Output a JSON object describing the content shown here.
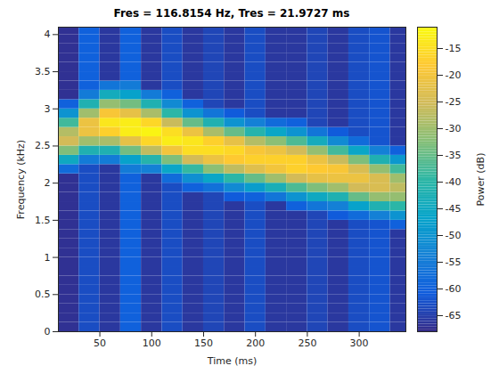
{
  "chart_data": {
    "type": "heatmap",
    "title": "Fres = 116.8154 Hz, Tres = 21.9727 ms",
    "x_label": "Time (ms)",
    "y_label": "Frequency (kHz)",
    "x": [
      20,
      40,
      60,
      80,
      100,
      120,
      140,
      160,
      180,
      200,
      220,
      240,
      260,
      280,
      300,
      320,
      340
    ],
    "y": [
      0.0625,
      0.1875,
      0.3125,
      0.4375,
      0.5625,
      0.6875,
      0.8125,
      0.9375,
      1.0625,
      1.1875,
      1.3125,
      1.4375,
      1.5625,
      1.6875,
      1.8125,
      1.9375,
      2.0625,
      2.1875,
      2.3125,
      2.4375,
      2.5625,
      2.6875,
      2.8125,
      2.9375,
      3.0625,
      3.1875,
      3.3125,
      3.4375,
      3.5625,
      3.6875,
      3.8125,
      3.9375,
      4.0625
    ],
    "values": [
      [
        -67,
        -67,
        -67,
        -67,
        -67,
        -67,
        -67,
        -67,
        -67,
        -67,
        -67,
        -67,
        -67,
        -67,
        -67,
        -67,
        -67,
        -58,
        -45,
        -33,
        -25,
        -28,
        -38,
        -50,
        -60,
        -67,
        -67,
        -67,
        -67,
        -67,
        -67,
        -67,
        -67
      ],
      [
        -63,
        -63,
        -63,
        -63,
        -63,
        -63,
        -63,
        -63,
        -63,
        -63,
        -63,
        -63,
        -63,
        -63,
        -63,
        -63,
        -63,
        -63,
        -55,
        -42,
        -30,
        -21,
        -21,
        -30,
        -42,
        -55,
        -60,
        -60,
        -60,
        -60,
        -60,
        -60,
        -60
      ],
      [
        -66,
        -66,
        -66,
        -66,
        -66,
        -66,
        -66,
        -66,
        -66,
        -66,
        -66,
        -66,
        -66,
        -66,
        -66,
        -66,
        -66,
        -66,
        -55,
        -42,
        -29,
        -17,
        -14,
        -19,
        -31,
        -44,
        -56,
        -66,
        -66,
        -66,
        -66,
        -66,
        -66
      ],
      [
        -60,
        -60,
        -60,
        -60,
        -60,
        -60,
        -60,
        -60,
        -60,
        -60,
        -60,
        -60,
        -60,
        -60,
        -60,
        -60,
        -60,
        -55,
        -47,
        -34,
        -22,
        -13,
        -13,
        -22,
        -34,
        -47,
        -55,
        -60,
        -60,
        -60,
        -60,
        -60,
        -60
      ],
      [
        -66,
        -66,
        -66,
        -66,
        -66,
        -66,
        -66,
        -66,
        -66,
        -66,
        -66,
        -66,
        -66,
        -66,
        -66,
        -66,
        -66,
        -54,
        -41,
        -27,
        -16,
        -12,
        -16,
        -29,
        -42,
        -55,
        -66,
        -66,
        -66,
        -66,
        -66,
        -66,
        -66
      ],
      [
        -63,
        -63,
        -63,
        -63,
        -63,
        -63,
        -63,
        -63,
        -63,
        -63,
        -63,
        -63,
        -63,
        -63,
        -63,
        -63,
        -58,
        -46,
        -33,
        -20,
        -13,
        -15,
        -26,
        -40,
        -52,
        -60,
        -63,
        -63,
        -63,
        -63,
        -63,
        -63,
        -63
      ],
      [
        -66,
        -66,
        -66,
        -66,
        -66,
        -66,
        -66,
        -66,
        -66,
        -66,
        -66,
        -66,
        -66,
        -66,
        -66,
        -60,
        -51,
        -39,
        -25,
        -15,
        -14,
        -21,
        -35,
        -50,
        -60,
        -66,
        -66,
        -66,
        -66,
        -66,
        -66,
        -66,
        -66
      ],
      [
        -64,
        -64,
        -64,
        -64,
        -64,
        -64,
        -64,
        -64,
        -64,
        -64,
        -64,
        -64,
        -64,
        -64,
        -64,
        -57,
        -46,
        -32,
        -21,
        -15,
        -17,
        -29,
        -42,
        -56,
        -64,
        -64,
        -64,
        -64,
        -64,
        -64,
        -64,
        -64,
        -64
      ],
      [
        -66,
        -66,
        -66,
        -66,
        -66,
        -66,
        -66,
        -66,
        -66,
        -66,
        -66,
        -66,
        -66,
        -66,
        -61,
        -52,
        -40,
        -27,
        -18,
        -16,
        -22,
        -35,
        -50,
        -61,
        -66,
        -66,
        -66,
        -66,
        -66,
        -66,
        -66,
        -66,
        -66
      ],
      [
        -63,
        -63,
        -63,
        -63,
        -63,
        -63,
        -63,
        -63,
        -63,
        -63,
        -63,
        -63,
        -63,
        -63,
        -60,
        -48,
        -35,
        -23,
        -17,
        -19,
        -28,
        -41,
        -54,
        -63,
        -63,
        -63,
        -63,
        -63,
        -63,
        -63,
        -63,
        -63,
        -63
      ],
      [
        -66,
        -66,
        -66,
        -66,
        -66,
        -66,
        -66,
        -66,
        -66,
        -66,
        -66,
        -66,
        -66,
        -66,
        -56,
        -43,
        -30,
        -20,
        -17,
        -21,
        -32,
        -46,
        -58,
        -66,
        -66,
        -66,
        -66,
        -66,
        -66,
        -66,
        -66,
        -66,
        -66
      ],
      [
        -66,
        -66,
        -66,
        -66,
        -66,
        -66,
        -66,
        -66,
        -66,
        -66,
        -66,
        -66,
        -66,
        -60,
        -50,
        -37,
        -25,
        -17,
        -17,
        -25,
        -37,
        -50,
        -60,
        -66,
        -66,
        -66,
        -66,
        -66,
        -66,
        -66,
        -66,
        -66,
        -66
      ],
      [
        -64,
        -64,
        -64,
        -64,
        -64,
        -64,
        -64,
        -64,
        -64,
        -64,
        -64,
        -64,
        -64,
        -56,
        -45,
        -33,
        -22,
        -18,
        -21,
        -31,
        -44,
        -56,
        -64,
        -64,
        -64,
        -64,
        -64,
        -64,
        -64,
        -64,
        -64,
        -64,
        -64
      ],
      [
        -66,
        -66,
        -66,
        -66,
        -66,
        -66,
        -66,
        -66,
        -66,
        -66,
        -66,
        -66,
        -61,
        -54,
        -42,
        -30,
        -21,
        -19,
        -26,
        -38,
        -52,
        -61,
        -66,
        -66,
        -66,
        -66,
        -66,
        -66,
        -66,
        -66,
        -66,
        -66,
        -66
      ],
      [
        -63,
        -63,
        -63,
        -63,
        -63,
        -63,
        -63,
        -63,
        -63,
        -63,
        -63,
        -63,
        -58,
        -47,
        -35,
        -25,
        -21,
        -24,
        -33,
        -46,
        -58,
        -63,
        -63,
        -63,
        -63,
        -63,
        -63,
        -63,
        -63,
        -63,
        -63,
        -63,
        -63
      ],
      [
        -62,
        -62,
        -62,
        -62,
        -62,
        -62,
        -62,
        -62,
        -62,
        -62,
        -62,
        -62,
        -54,
        -42,
        -31,
        -24,
        -24,
        -31,
        -42,
        -54,
        -62,
        -62,
        -62,
        -62,
        -62,
        -62,
        -62,
        -62,
        -62,
        -62,
        -62,
        -62,
        -62
      ],
      [
        -66,
        -66,
        -66,
        -66,
        -66,
        -66,
        -66,
        -66,
        -66,
        -66,
        -66,
        -60,
        -50,
        -40,
        -31,
        -27,
        -30,
        -38,
        -49,
        -60,
        -66,
        -66,
        -66,
        -66,
        -66,
        -66,
        -66,
        -66,
        -66,
        -66,
        -66,
        -66,
        -66
      ]
    ],
    "xlim": [
      10,
      345
    ],
    "ylim": [
      0,
      4.1
    ],
    "xticks": [
      50,
      100,
      150,
      200,
      250,
      300
    ],
    "yticks": [
      0,
      0.5,
      1,
      1.5,
      2,
      2.5,
      3,
      3.5,
      4
    ],
    "color_label": "Power (dB)",
    "color_range": [
      -68,
      -11
    ],
    "color_ticks": [
      -65,
      -60,
      -55,
      -50,
      -45,
      -40,
      -35,
      -30,
      -25,
      -20,
      -15
    ]
  }
}
